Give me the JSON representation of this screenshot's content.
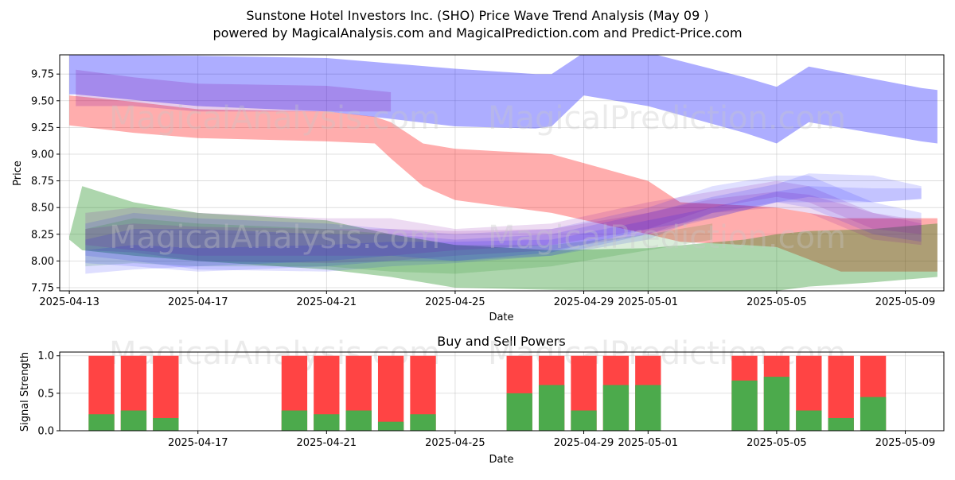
{
  "title_line1": "Sunstone Hotel Investors Inc. (SHO) Price Wave Trend Analysis (May 09 )",
  "title_line2": "powered by MagicalAnalysis.com and MagicalPrediction.com and Predict-Price.com",
  "watermarks": [
    "MagicalAnalysis.com",
    "MagicalPrediction.com"
  ],
  "colors": {
    "red": "#ff0000",
    "green": "#008000",
    "blue": "#0000ff",
    "purple": "#8000a0",
    "bar_red": "#ff4444",
    "bar_green": "#4caa4c"
  },
  "chart_data": [
    {
      "type": "area",
      "title": "Sunstone Hotel Investors Inc. (SHO) Price Wave Trend Analysis (May 09 )",
      "xlabel": "Date",
      "ylabel": "Price",
      "xlim_day": [
        -0.3,
        27.2
      ],
      "ylim": [
        7.72,
        9.93
      ],
      "x_ticks": [
        {
          "day": 0,
          "label": "2025-04-13"
        },
        {
          "day": 4,
          "label": "2025-04-17"
        },
        {
          "day": 8,
          "label": "2025-04-21"
        },
        {
          "day": 12,
          "label": "2025-04-25"
        },
        {
          "day": 16,
          "label": "2025-04-29"
        },
        {
          "day": 18,
          "label": "2025-05-01"
        },
        {
          "day": 22,
          "label": "2025-05-05"
        },
        {
          "day": 26,
          "label": "2025-05-09"
        }
      ],
      "y_ticks": [
        "7.75",
        "8.00",
        "8.25",
        "8.50",
        "8.75",
        "9.00",
        "9.25",
        "9.50",
        "9.75"
      ],
      "bands": [
        {
          "name": "blue wave (upper)",
          "color": "blue",
          "alpha": 0.32,
          "x": [
            0,
            0.2,
            4,
            8,
            12,
            14.5,
            15,
            16,
            18,
            21,
            22,
            23,
            26.5,
            27
          ],
          "lower": [
            9.56,
            9.56,
            9.45,
            9.4,
            9.26,
            9.24,
            9.26,
            9.55,
            9.45,
            9.2,
            9.1,
            9.3,
            9.12,
            9.1
          ],
          "upper": [
            9.93,
            9.93,
            9.92,
            9.9,
            9.8,
            9.75,
            9.75,
            9.95,
            9.95,
            9.72,
            9.63,
            9.82,
            9.62,
            9.6
          ]
        },
        {
          "name": "red wave (upper)",
          "color": "red",
          "alpha": 0.32,
          "x": [
            0,
            2,
            4,
            8,
            9.5,
            10,
            11,
            12,
            15,
            18,
            19,
            21,
            22,
            24,
            27
          ],
          "lower": [
            9.27,
            9.2,
            9.15,
            9.12,
            9.1,
            8.96,
            8.7,
            8.57,
            8.45,
            8.25,
            8.18,
            8.15,
            8.13,
            7.9,
            7.9
          ],
          "upper": [
            9.55,
            9.49,
            9.42,
            9.4,
            9.35,
            9.3,
            9.1,
            9.05,
            9.0,
            8.75,
            8.55,
            8.52,
            8.5,
            8.4,
            8.4
          ]
        },
        {
          "name": "purple wave",
          "color": "purple",
          "alpha": 0.2,
          "x": [
            0.2,
            2,
            4,
            8,
            10
          ],
          "lower": [
            9.45,
            9.45,
            9.4,
            9.4,
            9.4
          ],
          "upper": [
            9.79,
            9.72,
            9.66,
            9.64,
            9.58
          ]
        },
        {
          "name": "green wave",
          "color": "green",
          "alpha": 0.32,
          "x": [
            0,
            0.4,
            2,
            4,
            8,
            10,
            12,
            15,
            18,
            21,
            22,
            23,
            25,
            27
          ],
          "lower": [
            8.2,
            8.1,
            8.05,
            8.0,
            7.92,
            7.85,
            7.75,
            7.73,
            7.72,
            7.72,
            7.72,
            7.76,
            7.8,
            7.85
          ],
          "upper": [
            8.23,
            8.7,
            8.55,
            8.45,
            8.38,
            8.25,
            8.15,
            8.1,
            8.12,
            8.2,
            8.25,
            8.28,
            8.3,
            8.35
          ]
        },
        {
          "name": "lower cluster 1",
          "color": "blue",
          "alpha": 0.12,
          "x": [
            0.5,
            2,
            4,
            8,
            10,
            12,
            15,
            18,
            20,
            22,
            23,
            25,
            26.5
          ],
          "lower": [
            8.05,
            8.0,
            7.92,
            7.9,
            7.95,
            7.98,
            8.05,
            8.2,
            8.45,
            8.55,
            8.5,
            8.25,
            8.18
          ],
          "upper": [
            8.35,
            8.45,
            8.4,
            8.35,
            8.3,
            8.25,
            8.3,
            8.5,
            8.7,
            8.8,
            8.8,
            8.55,
            8.45
          ]
        },
        {
          "name": "lower cluster 2",
          "color": "purple",
          "alpha": 0.14,
          "x": [
            0.5,
            2,
            4,
            8,
            10,
            12,
            15,
            18,
            20,
            22,
            23,
            25,
            26.5
          ],
          "lower": [
            8.1,
            8.08,
            8.0,
            7.98,
            8.0,
            8.05,
            8.1,
            8.25,
            8.45,
            8.5,
            8.45,
            8.2,
            8.15
          ],
          "upper": [
            8.45,
            8.5,
            8.45,
            8.4,
            8.4,
            8.3,
            8.35,
            8.55,
            8.65,
            8.75,
            8.7,
            8.45,
            8.35
          ]
        },
        {
          "name": "lower cluster 3",
          "color": "green",
          "alpha": 0.14,
          "x": [
            0.5,
            2,
            4,
            8,
            10,
            12,
            15,
            18,
            20
          ],
          "lower": [
            7.95,
            7.98,
            7.95,
            7.95,
            7.9,
            7.88,
            7.95,
            8.1,
            8.2
          ],
          "upper": [
            8.3,
            8.4,
            8.35,
            8.3,
            8.25,
            8.15,
            8.15,
            8.25,
            8.35
          ]
        },
        {
          "name": "lower cluster 4",
          "color": "blue",
          "alpha": 0.13,
          "x": [
            0.5,
            2,
            4,
            8,
            10,
            12,
            15,
            18,
            20,
            22,
            23,
            25,
            26.5
          ],
          "lower": [
            7.88,
            7.92,
            7.95,
            8.0,
            8.05,
            8.0,
            8.08,
            8.3,
            8.4,
            8.55,
            8.6,
            8.55,
            8.58
          ],
          "upper": [
            8.2,
            8.3,
            8.3,
            8.25,
            8.25,
            8.2,
            8.25,
            8.45,
            8.6,
            8.72,
            8.82,
            8.8,
            8.7
          ]
        },
        {
          "name": "lower cluster 5",
          "color": "purple",
          "alpha": 0.14,
          "x": [
            0.5,
            2,
            4,
            8,
            10,
            12,
            15,
            18,
            20,
            22,
            23,
            25,
            26.5
          ],
          "lower": [
            8.15,
            8.1,
            8.05,
            8.05,
            8.05,
            8.1,
            8.15,
            8.3,
            8.5,
            8.6,
            8.55,
            8.3,
            8.25
          ],
          "upper": [
            8.3,
            8.35,
            8.32,
            8.3,
            8.3,
            8.28,
            8.3,
            8.45,
            8.58,
            8.65,
            8.62,
            8.45,
            8.38
          ]
        },
        {
          "name": "lower cluster 6",
          "color": "blue",
          "alpha": 0.12,
          "x": [
            0.5,
            2,
            4,
            8,
            10,
            12,
            15,
            18,
            20,
            22,
            23,
            25,
            26.5
          ],
          "lower": [
            7.98,
            7.95,
            7.9,
            7.95,
            8.0,
            8.0,
            8.05,
            8.25,
            8.4,
            8.55,
            8.55,
            8.55,
            8.58
          ],
          "upper": [
            8.1,
            8.15,
            8.12,
            8.15,
            8.18,
            8.18,
            8.2,
            8.38,
            8.5,
            8.65,
            8.7,
            8.68,
            8.68
          ]
        }
      ]
    },
    {
      "type": "bar",
      "title": "Buy and Sell Powers",
      "xlabel": "Date",
      "ylabel": "Signal Strength",
      "ylim": [
        0,
        1.05
      ],
      "y_ticks": [
        "0.0",
        "0.5",
        "1.0"
      ],
      "x_ticks": [
        {
          "day": 4,
          "label": "2025-04-17"
        },
        {
          "day": 8,
          "label": "2025-04-21"
        },
        {
          "day": 12,
          "label": "2025-04-25"
        },
        {
          "day": 16,
          "label": "2025-04-29"
        },
        {
          "day": 18,
          "label": "2025-05-01"
        },
        {
          "day": 22,
          "label": "2025-05-05"
        },
        {
          "day": 26,
          "label": "2025-05-09"
        }
      ],
      "series": [
        {
          "name": "Buy",
          "color": "bar_green"
        },
        {
          "name": "Sell",
          "color": "bar_red"
        }
      ],
      "days": [
        1,
        2,
        3,
        7,
        8,
        9,
        10,
        11,
        14,
        15,
        16,
        17,
        18,
        21,
        22,
        23,
        24,
        25
      ],
      "buy": [
        0.22,
        0.27,
        0.17,
        0.27,
        0.22,
        0.27,
        0.12,
        0.22,
        0.5,
        0.61,
        0.27,
        0.61,
        0.61,
        0.67,
        0.72,
        0.27,
        0.17,
        0.45
      ],
      "total": [
        1,
        1,
        1,
        1,
        1,
        1,
        1,
        1,
        1,
        1,
        1,
        1,
        1,
        1,
        1,
        1,
        1,
        1
      ]
    }
  ]
}
